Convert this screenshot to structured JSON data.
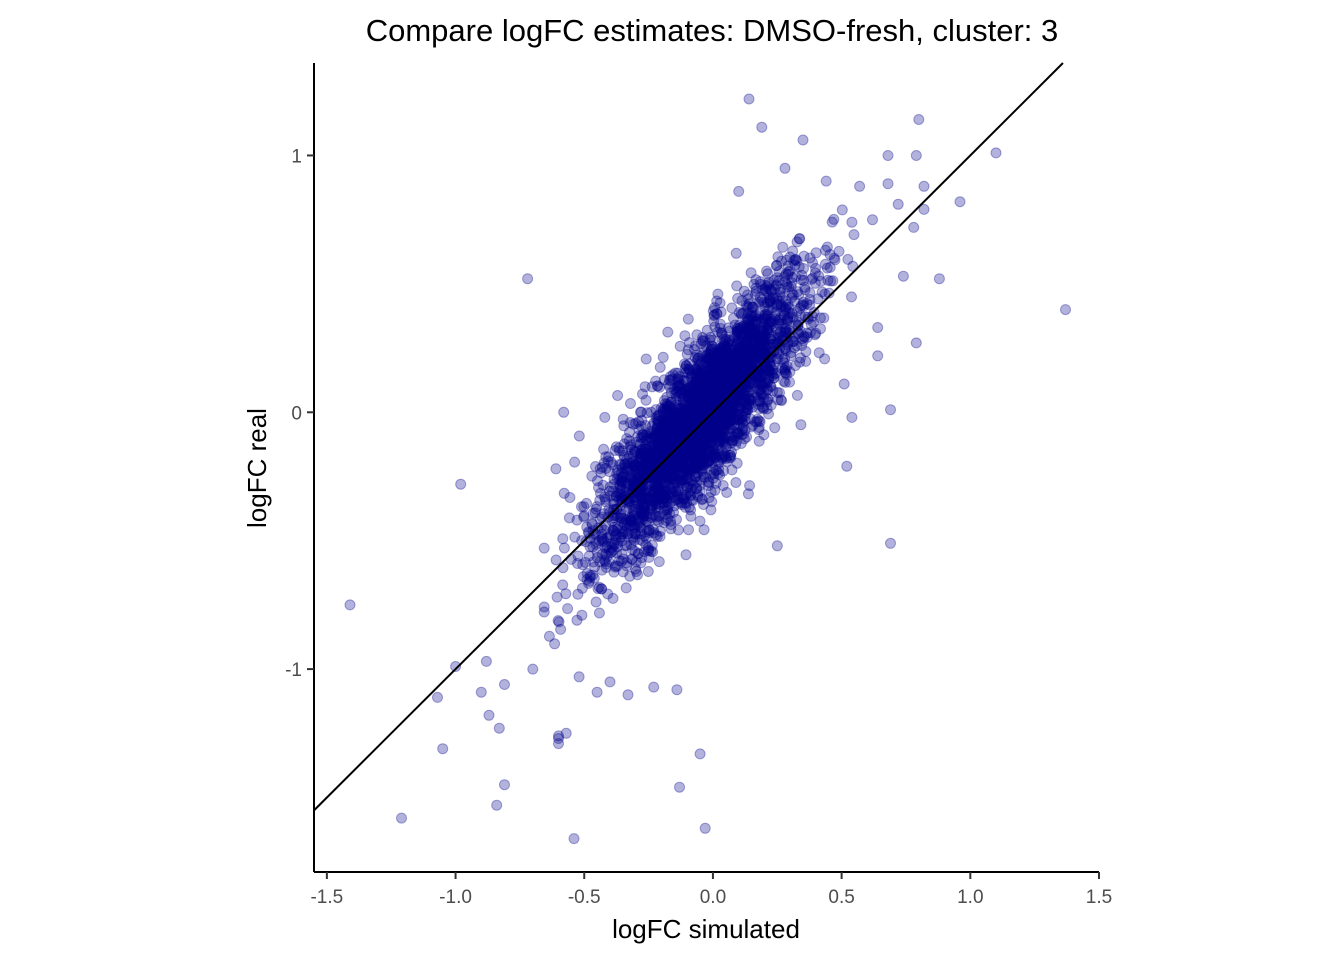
{
  "chart_data": {
    "type": "scatter",
    "title": "Compare logFC estimates: DMSO-fresh, cluster: 3",
    "xlabel": "logFC simulated",
    "ylabel": "logFC real",
    "xlim": [
      -1.55,
      1.5
    ],
    "ylim": [
      -1.79,
      1.36
    ],
    "x_ticks": [
      -1.5,
      -1.0,
      -0.5,
      0.0,
      0.5,
      1.0,
      1.5
    ],
    "x_tick_labels": [
      "-1.5",
      "-1.0",
      "-0.5",
      "0.0",
      "0.5",
      "1.0",
      "1.5"
    ],
    "y_ticks": [
      -1,
      0,
      1
    ],
    "y_tick_labels": [
      "-1",
      "0",
      "1"
    ],
    "grid": false,
    "legend": "none",
    "point_color": "#00008B",
    "point_alpha": 0.3,
    "reference_line": {
      "slope": 1,
      "intercept": 0
    },
    "cloud": {
      "count": 3200,
      "x_center": -0.05,
      "x_sd": 0.2,
      "slope": 1.12,
      "residual_sd": 0.14,
      "x_range": [
        -0.7,
        0.55
      ],
      "y_range": [
        -0.95,
        0.8
      ]
    },
    "outliers": [
      {
        "x": 0.14,
        "y": 1.22
      },
      {
        "x": 0.19,
        "y": 1.11
      },
      {
        "x": 0.8,
        "y": 1.14
      },
      {
        "x": 0.35,
        "y": 1.06
      },
      {
        "x": 1.1,
        "y": 1.01
      },
      {
        "x": 0.68,
        "y": 1.0
      },
      {
        "x": 0.79,
        "y": 1.0
      },
      {
        "x": 0.28,
        "y": 0.95
      },
      {
        "x": 0.44,
        "y": 0.9
      },
      {
        "x": 0.57,
        "y": 0.88
      },
      {
        "x": 0.68,
        "y": 0.89
      },
      {
        "x": 0.82,
        "y": 0.88
      },
      {
        "x": 0.1,
        "y": 0.86
      },
      {
        "x": 0.96,
        "y": 0.82
      },
      {
        "x": 0.72,
        "y": 0.81
      },
      {
        "x": 0.82,
        "y": 0.79
      },
      {
        "x": 0.62,
        "y": 0.75
      },
      {
        "x": 0.54,
        "y": 0.74
      },
      {
        "x": 0.78,
        "y": 0.72
      },
      {
        "x": -0.72,
        "y": 0.52
      },
      {
        "x": 0.88,
        "y": 0.52
      },
      {
        "x": 0.74,
        "y": 0.53
      },
      {
        "x": 1.37,
        "y": 0.4
      },
      {
        "x": 0.64,
        "y": 0.33
      },
      {
        "x": 0.79,
        "y": 0.27
      },
      {
        "x": 0.64,
        "y": 0.22
      },
      {
        "x": 0.51,
        "y": 0.11
      },
      {
        "x": 0.69,
        "y": 0.01
      },
      {
        "x": 0.54,
        "y": -0.02
      },
      {
        "x": 0.52,
        "y": -0.21
      },
      {
        "x": 0.69,
        "y": -0.51
      },
      {
        "x": 0.25,
        "y": -0.52
      },
      {
        "x": -0.58,
        "y": 0.0
      },
      {
        "x": -0.42,
        "y": -0.02
      },
      {
        "x": -0.98,
        "y": -0.28
      },
      {
        "x": -0.61,
        "y": -0.22
      },
      {
        "x": -1.41,
        "y": -0.75
      },
      {
        "x": -1.0,
        "y": -0.99
      },
      {
        "x": -1.07,
        "y": -1.11
      },
      {
        "x": -0.9,
        "y": -1.09
      },
      {
        "x": -0.81,
        "y": -1.06
      },
      {
        "x": -0.88,
        "y": -0.97
      },
      {
        "x": -0.87,
        "y": -1.18
      },
      {
        "x": -0.83,
        "y": -1.23
      },
      {
        "x": -1.05,
        "y": -1.31
      },
      {
        "x": -0.6,
        "y": -1.27
      },
      {
        "x": -0.6,
        "y": -1.29
      },
      {
        "x": -0.6,
        "y": -1.26
      },
      {
        "x": -0.57,
        "y": -1.25
      },
      {
        "x": -0.05,
        "y": -1.33
      },
      {
        "x": -0.13,
        "y": -1.46
      },
      {
        "x": -0.81,
        "y": -1.45
      },
      {
        "x": -0.84,
        "y": -1.53
      },
      {
        "x": -1.21,
        "y": -1.58
      },
      {
        "x": -0.54,
        "y": -1.66
      },
      {
        "x": -0.03,
        "y": -1.62
      },
      {
        "x": -0.45,
        "y": -1.09
      },
      {
        "x": -0.33,
        "y": -1.1
      },
      {
        "x": -0.23,
        "y": -1.07
      },
      {
        "x": -0.14,
        "y": -1.08
      },
      {
        "x": -0.4,
        "y": -1.05
      },
      {
        "x": -0.7,
        "y": -1.0
      },
      {
        "x": -0.52,
        "y": -1.03
      }
    ]
  }
}
